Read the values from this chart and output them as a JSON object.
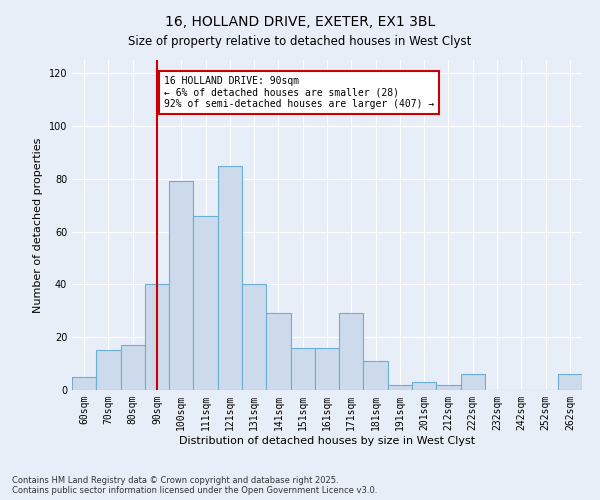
{
  "title1": "16, HOLLAND DRIVE, EXETER, EX1 3BL",
  "title2": "Size of property relative to detached houses in West Clyst",
  "xlabel": "Distribution of detached houses by size in West Clyst",
  "ylabel": "Number of detached properties",
  "categories": [
    "60sqm",
    "70sqm",
    "80sqm",
    "90sqm",
    "100sqm",
    "111sqm",
    "121sqm",
    "131sqm",
    "141sqm",
    "151sqm",
    "161sqm",
    "171sqm",
    "181sqm",
    "191sqm",
    "201sqm",
    "212sqm",
    "222sqm",
    "232sqm",
    "242sqm",
    "252sqm",
    "262sqm"
  ],
  "values": [
    5,
    15,
    17,
    40,
    79,
    66,
    85,
    40,
    29,
    16,
    16,
    29,
    11,
    2,
    3,
    2,
    6,
    0,
    0,
    0,
    6
  ],
  "bar_color": "#ccdaeb",
  "bar_edge_color": "#6baed6",
  "highlight_line_color": "#cc0000",
  "annotation_text": "16 HOLLAND DRIVE: 90sqm\n← 6% of detached houses are smaller (28)\n92% of semi-detached houses are larger (407) →",
  "annotation_box_color": "#ffffff",
  "annotation_border_color": "#cc0000",
  "ylim": [
    0,
    125
  ],
  "yticks": [
    0,
    20,
    40,
    60,
    80,
    100,
    120
  ],
  "bg_color": "#e8eef8",
  "grid_color": "#ffffff",
  "footnote": "Contains HM Land Registry data © Crown copyright and database right 2025.\nContains public sector information licensed under the Open Government Licence v3.0.",
  "title1_fontsize": 10,
  "title2_fontsize": 8.5,
  "xlabel_fontsize": 8,
  "ylabel_fontsize": 8,
  "annotation_fontsize": 7,
  "footnote_fontsize": 6,
  "tick_fontsize": 7
}
